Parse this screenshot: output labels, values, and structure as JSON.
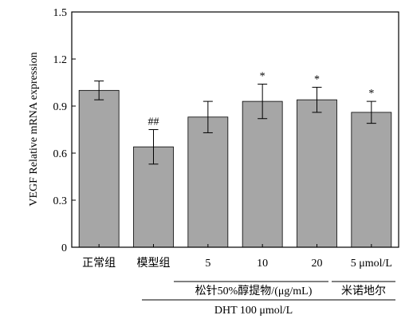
{
  "chart_data": {
    "type": "bar",
    "ylabel": "VEGF Relative mRNA expression",
    "ylim": [
      0,
      1.5
    ],
    "yticks": [
      0,
      0.3,
      0.6,
      0.9,
      1.2,
      1.5
    ],
    "ytick_labels": [
      "0",
      "0.3",
      "0.6",
      "0.9",
      "1.2",
      "1.5"
    ],
    "categories": [
      "正常组",
      "模型组",
      "5",
      "10",
      "20",
      "5 μmol/L"
    ],
    "values": [
      1.0,
      0.64,
      0.83,
      0.93,
      0.94,
      0.86
    ],
    "errors": [
      0.06,
      0.11,
      0.1,
      0.11,
      0.08,
      0.07
    ],
    "annotations": [
      "",
      "##",
      "",
      "*",
      "*",
      "*"
    ],
    "group_labels": {
      "extract": "松针50%醇提物/(μg/mL)",
      "drug": "米诺地尔",
      "dht": "DHT 100 μmol/L"
    },
    "bar_color": "#a6a6a6",
    "grid": false
  }
}
